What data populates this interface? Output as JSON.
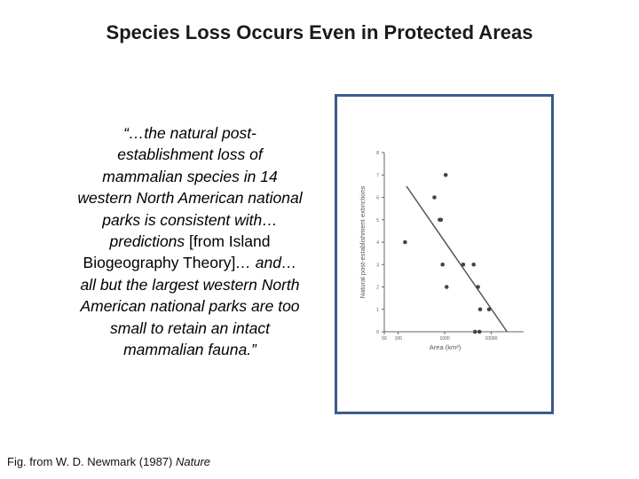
{
  "slide": {
    "title": "Species Loss Occurs Even in Protected Areas",
    "quote_parts": [
      {
        "text": "“…the natural post-establishment loss of mammalian species in 14 western North American national parks is consistent with… predictions ",
        "italic": true
      },
      {
        "text": "[from Island Biogeography Theory]",
        "italic": false
      },
      {
        "text": "… and… all but the largest western North American national parks are too small to retain an intact mammalian fauna.”",
        "italic": true
      }
    ],
    "caption_prefix": "Fig. from W. D. Newmark (1987) ",
    "caption_journal": "Nature"
  },
  "chart_data": {
    "type": "scatter",
    "xlabel": "Area (km²)",
    "ylabel": "Natural post-establishment extinctions",
    "x_scale": "log",
    "xlim": [
      50,
      50000
    ],
    "ylim": [
      0,
      8
    ],
    "x_ticks": [
      50,
      100,
      1000,
      10000
    ],
    "x_tick_labels": [
      "50",
      "100",
      "1000",
      "10000"
    ],
    "y_ticks": [
      0,
      1,
      2,
      3,
      4,
      5,
      6,
      7,
      8
    ],
    "y_tick_labels": [
      "0",
      "1",
      "2",
      "3",
      "4",
      "5",
      "6",
      "7",
      "8"
    ],
    "series": [
      {
        "points": [
          {
            "x": 140,
            "y": 4
          },
          {
            "x": 600,
            "y": 6
          },
          {
            "x": 780,
            "y": 5
          },
          {
            "x": 830,
            "y": 5
          },
          {
            "x": 1050,
            "y": 7
          },
          {
            "x": 900,
            "y": 3
          },
          {
            "x": 1100,
            "y": 2
          },
          {
            "x": 2500,
            "y": 3
          },
          {
            "x": 4200,
            "y": 3
          },
          {
            "x": 5200,
            "y": 2
          },
          {
            "x": 5800,
            "y": 1
          },
          {
            "x": 9000,
            "y": 1
          },
          {
            "x": 4500,
            "y": 0
          },
          {
            "x": 5600,
            "y": 0
          }
        ]
      }
    ],
    "regression_line": [
      {
        "x": 150,
        "y": 6.5
      },
      {
        "x": 22000,
        "y": 0
      }
    ],
    "grid": false,
    "colors": {
      "points": "#444444",
      "line": "#555555",
      "axis": "#666666",
      "frame": "#3b5b8a"
    }
  }
}
